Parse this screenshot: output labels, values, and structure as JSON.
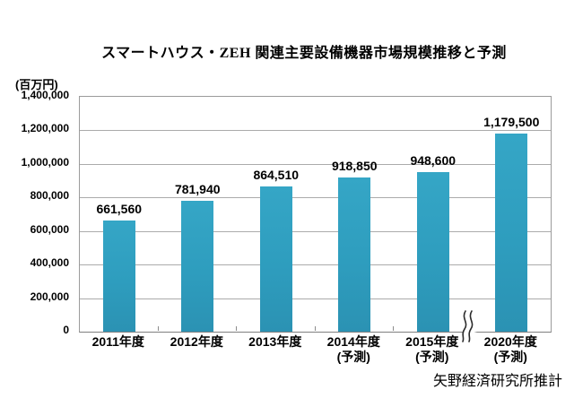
{
  "title": "スマートハウス・ZEH 関連主要設備機器市場規模推移と予測",
  "unit_label": "(百万円)",
  "source_note": "矢野経済研究所推計",
  "colors": {
    "bar": "#2E9DBE",
    "gridline": "#ABABAB",
    "axis": "#7F7F7F",
    "text": "#000000"
  },
  "chart_data": {
    "type": "bar",
    "title": "スマートハウス・ZEH 関連主要設備機器市場規模推移と予測",
    "xlabel": "",
    "ylabel": "(百万円)",
    "ylim": [
      0,
      1400000
    ],
    "ytick_step": 200000,
    "ytick_labels": [
      "0",
      "200,000",
      "400,000",
      "600,000",
      "800,000",
      "1,000,000",
      "1,200,000",
      "1,400,000"
    ],
    "grid": true,
    "legend": "none",
    "axis_break_after_index": 4,
    "categories": [
      {
        "label": "2011年度",
        "sublabel": ""
      },
      {
        "label": "2012年度",
        "sublabel": ""
      },
      {
        "label": "2013年度",
        "sublabel": ""
      },
      {
        "label": "2014年度",
        "sublabel": "(予測)"
      },
      {
        "label": "2015年度",
        "sublabel": "(予測)"
      },
      {
        "label": "2020年度",
        "sublabel": "(予測)"
      }
    ],
    "values": [
      661560,
      781940,
      864510,
      918850,
      948600,
      1179500
    ],
    "value_labels": [
      "661,560",
      "781,940",
      "864,510",
      "918,850",
      "948,600",
      "1,179,500"
    ]
  }
}
